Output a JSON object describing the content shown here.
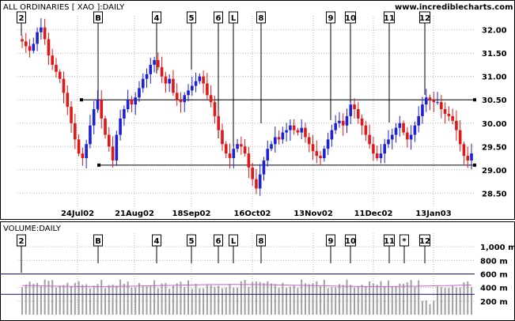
{
  "header": {
    "title": "ALL ORDINARIES [ XAO ]:DAILY",
    "url": "www.incrediblecharts.com",
    "volume_title": "VOLUME:DAILY"
  },
  "colors": {
    "up": "#1c20d6",
    "down": "#e01818",
    "grid": "#b8b8b8",
    "ma": "#d060d0",
    "volume": "#a0a0a0",
    "line": "#000000"
  },
  "chart_data": [
    {
      "type": "candlestick",
      "title": "ALL ORDINARIES [ XAO ]:DAILY",
      "x_ticks": [
        "24Jul02",
        "21Aug02",
        "18Sep02",
        "16Oct02",
        "13Nov02",
        "11Dec02",
        "13Jan03"
      ],
      "y_ticks": [
        "28.50",
        "29.00",
        "29.50",
        "30.00",
        "30.50",
        "31.00",
        "31.50",
        "32.00"
      ],
      "ylim": [
        28.2,
        32.3
      ],
      "grid": true,
      "markers": [
        "2",
        "B",
        "4",
        "5",
        "6",
        "L",
        "8",
        "9",
        "10",
        "11",
        "12"
      ],
      "horizontal_lines": [
        30.5,
        29.1
      ],
      "close": [
        31.75,
        31.65,
        31.55,
        31.7,
        31.95,
        32.05,
        31.8,
        31.45,
        31.25,
        31.1,
        30.95,
        30.65,
        30.35,
        30.0,
        29.65,
        29.35,
        29.25,
        29.55,
        29.95,
        30.3,
        30.5,
        30.1,
        29.75,
        29.5,
        29.2,
        29.75,
        30.1,
        30.3,
        30.5,
        30.4,
        30.55,
        30.75,
        30.95,
        31.05,
        31.25,
        31.35,
        31.2,
        31.0,
        30.85,
        30.95,
        30.65,
        30.5,
        30.45,
        30.6,
        30.7,
        30.8,
        30.9,
        31.0,
        30.85,
        30.6,
        30.45,
        30.15,
        29.85,
        29.55,
        29.35,
        29.25,
        29.45,
        29.55,
        29.5,
        29.35,
        29.05,
        28.8,
        28.6,
        28.9,
        29.2,
        29.45,
        29.55,
        29.7,
        29.65,
        29.8,
        29.85,
        29.95,
        29.85,
        29.8,
        29.9,
        29.7,
        29.55,
        29.4,
        29.3,
        29.25,
        29.45,
        29.65,
        29.85,
        30.0,
        30.05,
        29.95,
        30.15,
        30.4,
        30.3,
        30.1,
        29.95,
        29.75,
        29.55,
        29.35,
        29.25,
        29.35,
        29.55,
        29.65,
        29.75,
        29.9,
        30.0,
        29.8,
        29.65,
        29.75,
        29.95,
        30.15,
        30.4,
        30.55,
        30.5,
        30.45,
        30.45,
        30.3,
        30.2,
        30.15,
        30.05,
        29.85,
        29.55,
        29.3,
        29.2,
        29.35
      ]
    },
    {
      "type": "bar",
      "title": "VOLUME:DAILY",
      "y_ticks": [
        "200 m",
        "400 m",
        "600 m",
        "800 m",
        "1,000 m"
      ],
      "ylim": [
        0,
        1200
      ],
      "markers": [
        "2",
        "B",
        "4",
        "5",
        "6",
        "L",
        "8",
        "9",
        "10",
        "11",
        "*",
        "12"
      ],
      "horizontal_lines": [
        600,
        300
      ]
    }
  ]
}
